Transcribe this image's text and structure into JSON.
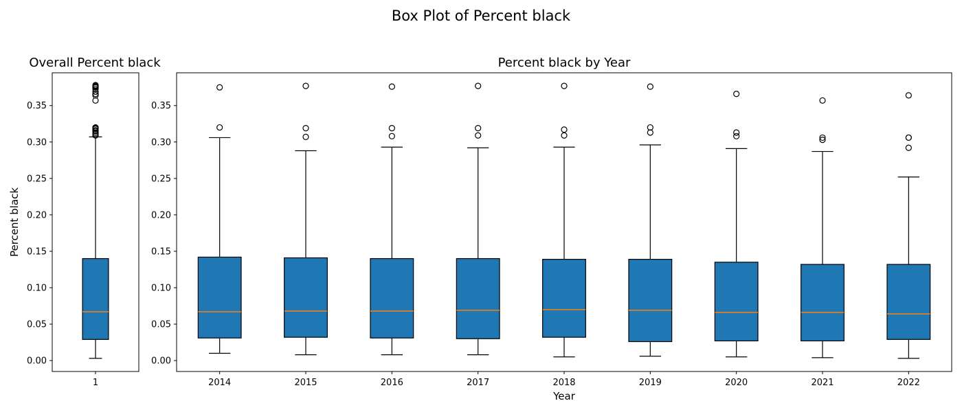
{
  "figure": {
    "title": "Box Plot of Percent black"
  },
  "colors": {
    "box_fill": "#1f77b4",
    "median": "#ff7f0e",
    "edge": "#000000"
  },
  "chart_data": [
    {
      "type": "box",
      "title": "Overall Percent black",
      "xlabel": "",
      "ylabel": "Percent black",
      "ylim": [
        -0.015,
        0.395
      ],
      "yticks": [
        0.0,
        0.05,
        0.1,
        0.15,
        0.2,
        0.25,
        0.3,
        0.35
      ],
      "ytick_labels": [
        "0.00",
        "0.05",
        "0.10",
        "0.15",
        "0.20",
        "0.25",
        "0.30",
        "0.35"
      ],
      "categories": [
        "1"
      ],
      "boxes": [
        {
          "label": "1",
          "whisker_low": 0.003,
          "q1": 0.029,
          "median": 0.067,
          "q3": 0.14,
          "whisker_high": 0.307,
          "fliers": [
            0.309,
            0.311,
            0.313,
            0.315,
            0.316,
            0.318,
            0.319,
            0.32,
            0.357,
            0.364,
            0.366,
            0.369,
            0.373,
            0.375,
            0.376,
            0.377,
            0.378
          ]
        }
      ]
    },
    {
      "type": "box",
      "title": "Percent black by Year",
      "xlabel": "Year",
      "ylabel": "",
      "ylim": [
        -0.015,
        0.395
      ],
      "yticks": [
        0.0,
        0.05,
        0.1,
        0.15,
        0.2,
        0.25,
        0.3,
        0.35
      ],
      "ytick_labels": [
        "0.00",
        "0.05",
        "0.10",
        "0.15",
        "0.20",
        "0.25",
        "0.30",
        "0.35"
      ],
      "categories": [
        "2014",
        "2015",
        "2016",
        "2017",
        "2018",
        "2019",
        "2020",
        "2021",
        "2022"
      ],
      "boxes": [
        {
          "label": "2014",
          "whisker_low": 0.01,
          "q1": 0.031,
          "median": 0.067,
          "q3": 0.142,
          "whisker_high": 0.306,
          "fliers": [
            0.32,
            0.375
          ]
        },
        {
          "label": "2015",
          "whisker_low": 0.008,
          "q1": 0.032,
          "median": 0.068,
          "q3": 0.141,
          "whisker_high": 0.288,
          "fliers": [
            0.307,
            0.319,
            0.377
          ]
        },
        {
          "label": "2016",
          "whisker_low": 0.008,
          "q1": 0.031,
          "median": 0.068,
          "q3": 0.14,
          "whisker_high": 0.293,
          "fliers": [
            0.308,
            0.319,
            0.376
          ]
        },
        {
          "label": "2017",
          "whisker_low": 0.008,
          "q1": 0.03,
          "median": 0.069,
          "q3": 0.14,
          "whisker_high": 0.292,
          "fliers": [
            0.309,
            0.319,
            0.377
          ]
        },
        {
          "label": "2018",
          "whisker_low": 0.005,
          "q1": 0.032,
          "median": 0.07,
          "q3": 0.139,
          "whisker_high": 0.293,
          "fliers": [
            0.309,
            0.317,
            0.377
          ]
        },
        {
          "label": "2019",
          "whisker_low": 0.006,
          "q1": 0.026,
          "median": 0.069,
          "q3": 0.139,
          "whisker_high": 0.296,
          "fliers": [
            0.313,
            0.32,
            0.376
          ]
        },
        {
          "label": "2020",
          "whisker_low": 0.005,
          "q1": 0.027,
          "median": 0.066,
          "q3": 0.135,
          "whisker_high": 0.291,
          "fliers": [
            0.308,
            0.313,
            0.366
          ]
        },
        {
          "label": "2021",
          "whisker_low": 0.004,
          "q1": 0.027,
          "median": 0.066,
          "q3": 0.132,
          "whisker_high": 0.287,
          "fliers": [
            0.303,
            0.306,
            0.357
          ]
        },
        {
          "label": "2022",
          "whisker_low": 0.003,
          "q1": 0.029,
          "median": 0.064,
          "q3": 0.132,
          "whisker_high": 0.252,
          "fliers": [
            0.292,
            0.306,
            0.306,
            0.364
          ]
        }
      ]
    }
  ]
}
